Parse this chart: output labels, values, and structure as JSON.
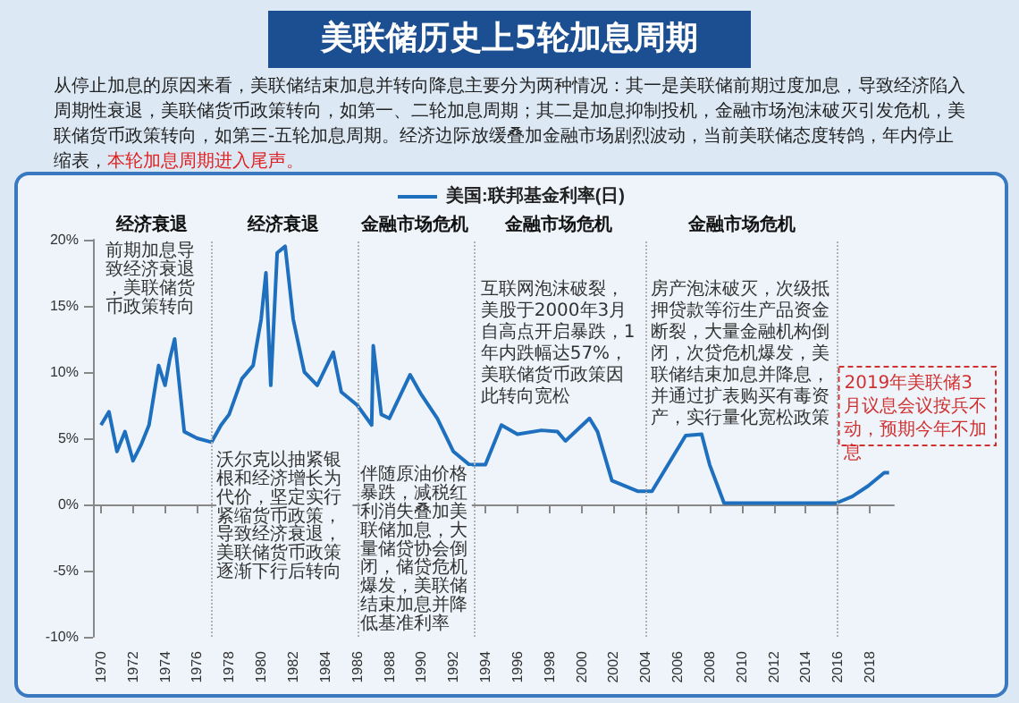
{
  "chart_data": {
    "type": "line",
    "title": "美联储历史上5轮加息周期",
    "subtitle": "从停止加息的原因来看，美联储结束加息并转向降息主要分为两种情况：其一是美联储前期过度加息，导致经济陷入周期性衰退，美联储货币政策转向，如第一、二轮加息周期；其二是加息抑制投机，金融市场泡沫破灭引发危机，美联储货币政策转向，如第三-五轮加息周期。经济边际放缓叠加金融市场剧烈波动，当前美联储态度转鸽，年内停止缩表，",
    "annotations": [
      "本轮加息周期进入尾声。",
      "经济衰退",
      "经济衰退",
      "金融市场危机",
      "金融市场危机",
      "金融市场危机",
      "前期加息导致经济衰退，美联储货币政策转向",
      "沃尔克以抽紧银根和经济增长为代价，坚定实行紧缩货币政策，导致经济衰退，美联储货币政策逐渐下行后转向",
      "伴随原油价格暴跌，减税红利消失叠加美联储加息，大量储贷协会倒闭，储贷危机爆发，美联储结束加息并降低基准利率",
      "互联网泡沫破裂，美股于2000年3月自高点开启暴跌，1年内跌幅达57%，美联储货币政策因此转向宽松",
      "房产泡沫破灭，次级抵押贷款等衍生产品资金断裂，大量金融机构倒闭，次贷危机爆发，美联储结束加息并降息，并通过扩表购买有毒资产，实行量化宽松政策",
      "2019年美联储3月议息会议按兵不动，预期今年不加息"
    ],
    "x": [
      1970.0,
      1970.5,
      1971.0,
      1971.5,
      1972.0,
      1972.5,
      1973.0,
      1973.6,
      1974.0,
      1974.3,
      1974.6,
      1975.2,
      1976.0,
      1976.9,
      1977.5,
      1978.0,
      1978.8,
      1979.5,
      1980.0,
      1980.3,
      1980.6,
      1981.0,
      1981.5,
      1982.0,
      1982.7,
      1983.5,
      1984.5,
      1985.0,
      1986.0,
      1986.9,
      1987.0,
      1987.5,
      1988.0,
      1989.3,
      1990.0,
      1991.0,
      1992.0,
      1993.0,
      1994.0,
      1995.0,
      1996.0,
      1997.5,
      1998.5,
      1999.0,
      2000.5,
      2001.0,
      2001.9,
      2003.5,
      2004.4,
      2006.5,
      2007.5,
      2008.0,
      2008.9,
      2011.0,
      2013.0,
      2015.9,
      2016.9,
      2017.9,
      2018.9,
      2019.2
    ],
    "series": [
      {
        "name": "美国:联邦基金利率(日)",
        "color": "#1f6fbf",
        "values": [
          6,
          7,
          4,
          5.5,
          3.3,
          4.5,
          6,
          10.5,
          9,
          11,
          12.5,
          5.5,
          5,
          4.7,
          6,
          6.8,
          9.5,
          10.5,
          14,
          17.5,
          9,
          19,
          19.5,
          14,
          10,
          9,
          11.5,
          8.5,
          7.5,
          6,
          12,
          6.8,
          6.5,
          9.8,
          8.3,
          6.5,
          4,
          3,
          3,
          6,
          5.3,
          5.6,
          5.5,
          4.8,
          6.5,
          5.5,
          1.8,
          1,
          1,
          5.2,
          5.3,
          3,
          0.1,
          0.1,
          0.1,
          0.1,
          0.6,
          1.4,
          2.4,
          2.4
        ]
      }
    ],
    "xlim": [
      1969.5,
      2019.5
    ],
    "xticks": [
      1970,
      1972,
      1974,
      1976,
      1978,
      1980,
      1982,
      1984,
      1986,
      1988,
      1990,
      1992,
      1994,
      1996,
      1998,
      2000,
      2002,
      2004,
      2006,
      2008,
      2010,
      2012,
      2014,
      2016,
      2018
    ],
    "ylim": [
      -10,
      20
    ],
    "yticks": [
      {
        "value": -10,
        "label": "-10%"
      },
      {
        "value": -5,
        "label": "-5%"
      },
      {
        "value": 0,
        "label": "0%"
      },
      {
        "value": 5,
        "label": "5%"
      },
      {
        "value": 10,
        "label": "10%"
      },
      {
        "value": 15,
        "label": "15%"
      },
      {
        "value": 20,
        "label": "20%"
      }
    ],
    "ref_lines": [
      {
        "axis": "x",
        "value": 1976.9,
        "color": "#b0b0b0",
        "line_style": "dotted"
      },
      {
        "axis": "x",
        "value": 1986,
        "color": "#b0b0b0",
        "line_style": "dotted"
      },
      {
        "axis": "x",
        "value": 1993.3,
        "color": "#b0b0b0",
        "line_style": "dotted"
      },
      {
        "axis": "x",
        "value": 2004,
        "color": "#b0b0b0",
        "line_style": "dotted"
      },
      {
        "axis": "x",
        "value": 2016,
        "color": "#b0b0b0",
        "line_style": "dotted"
      }
    ],
    "grid": false,
    "legend": "top",
    "marker": "none",
    "line_style": "solid"
  }
}
